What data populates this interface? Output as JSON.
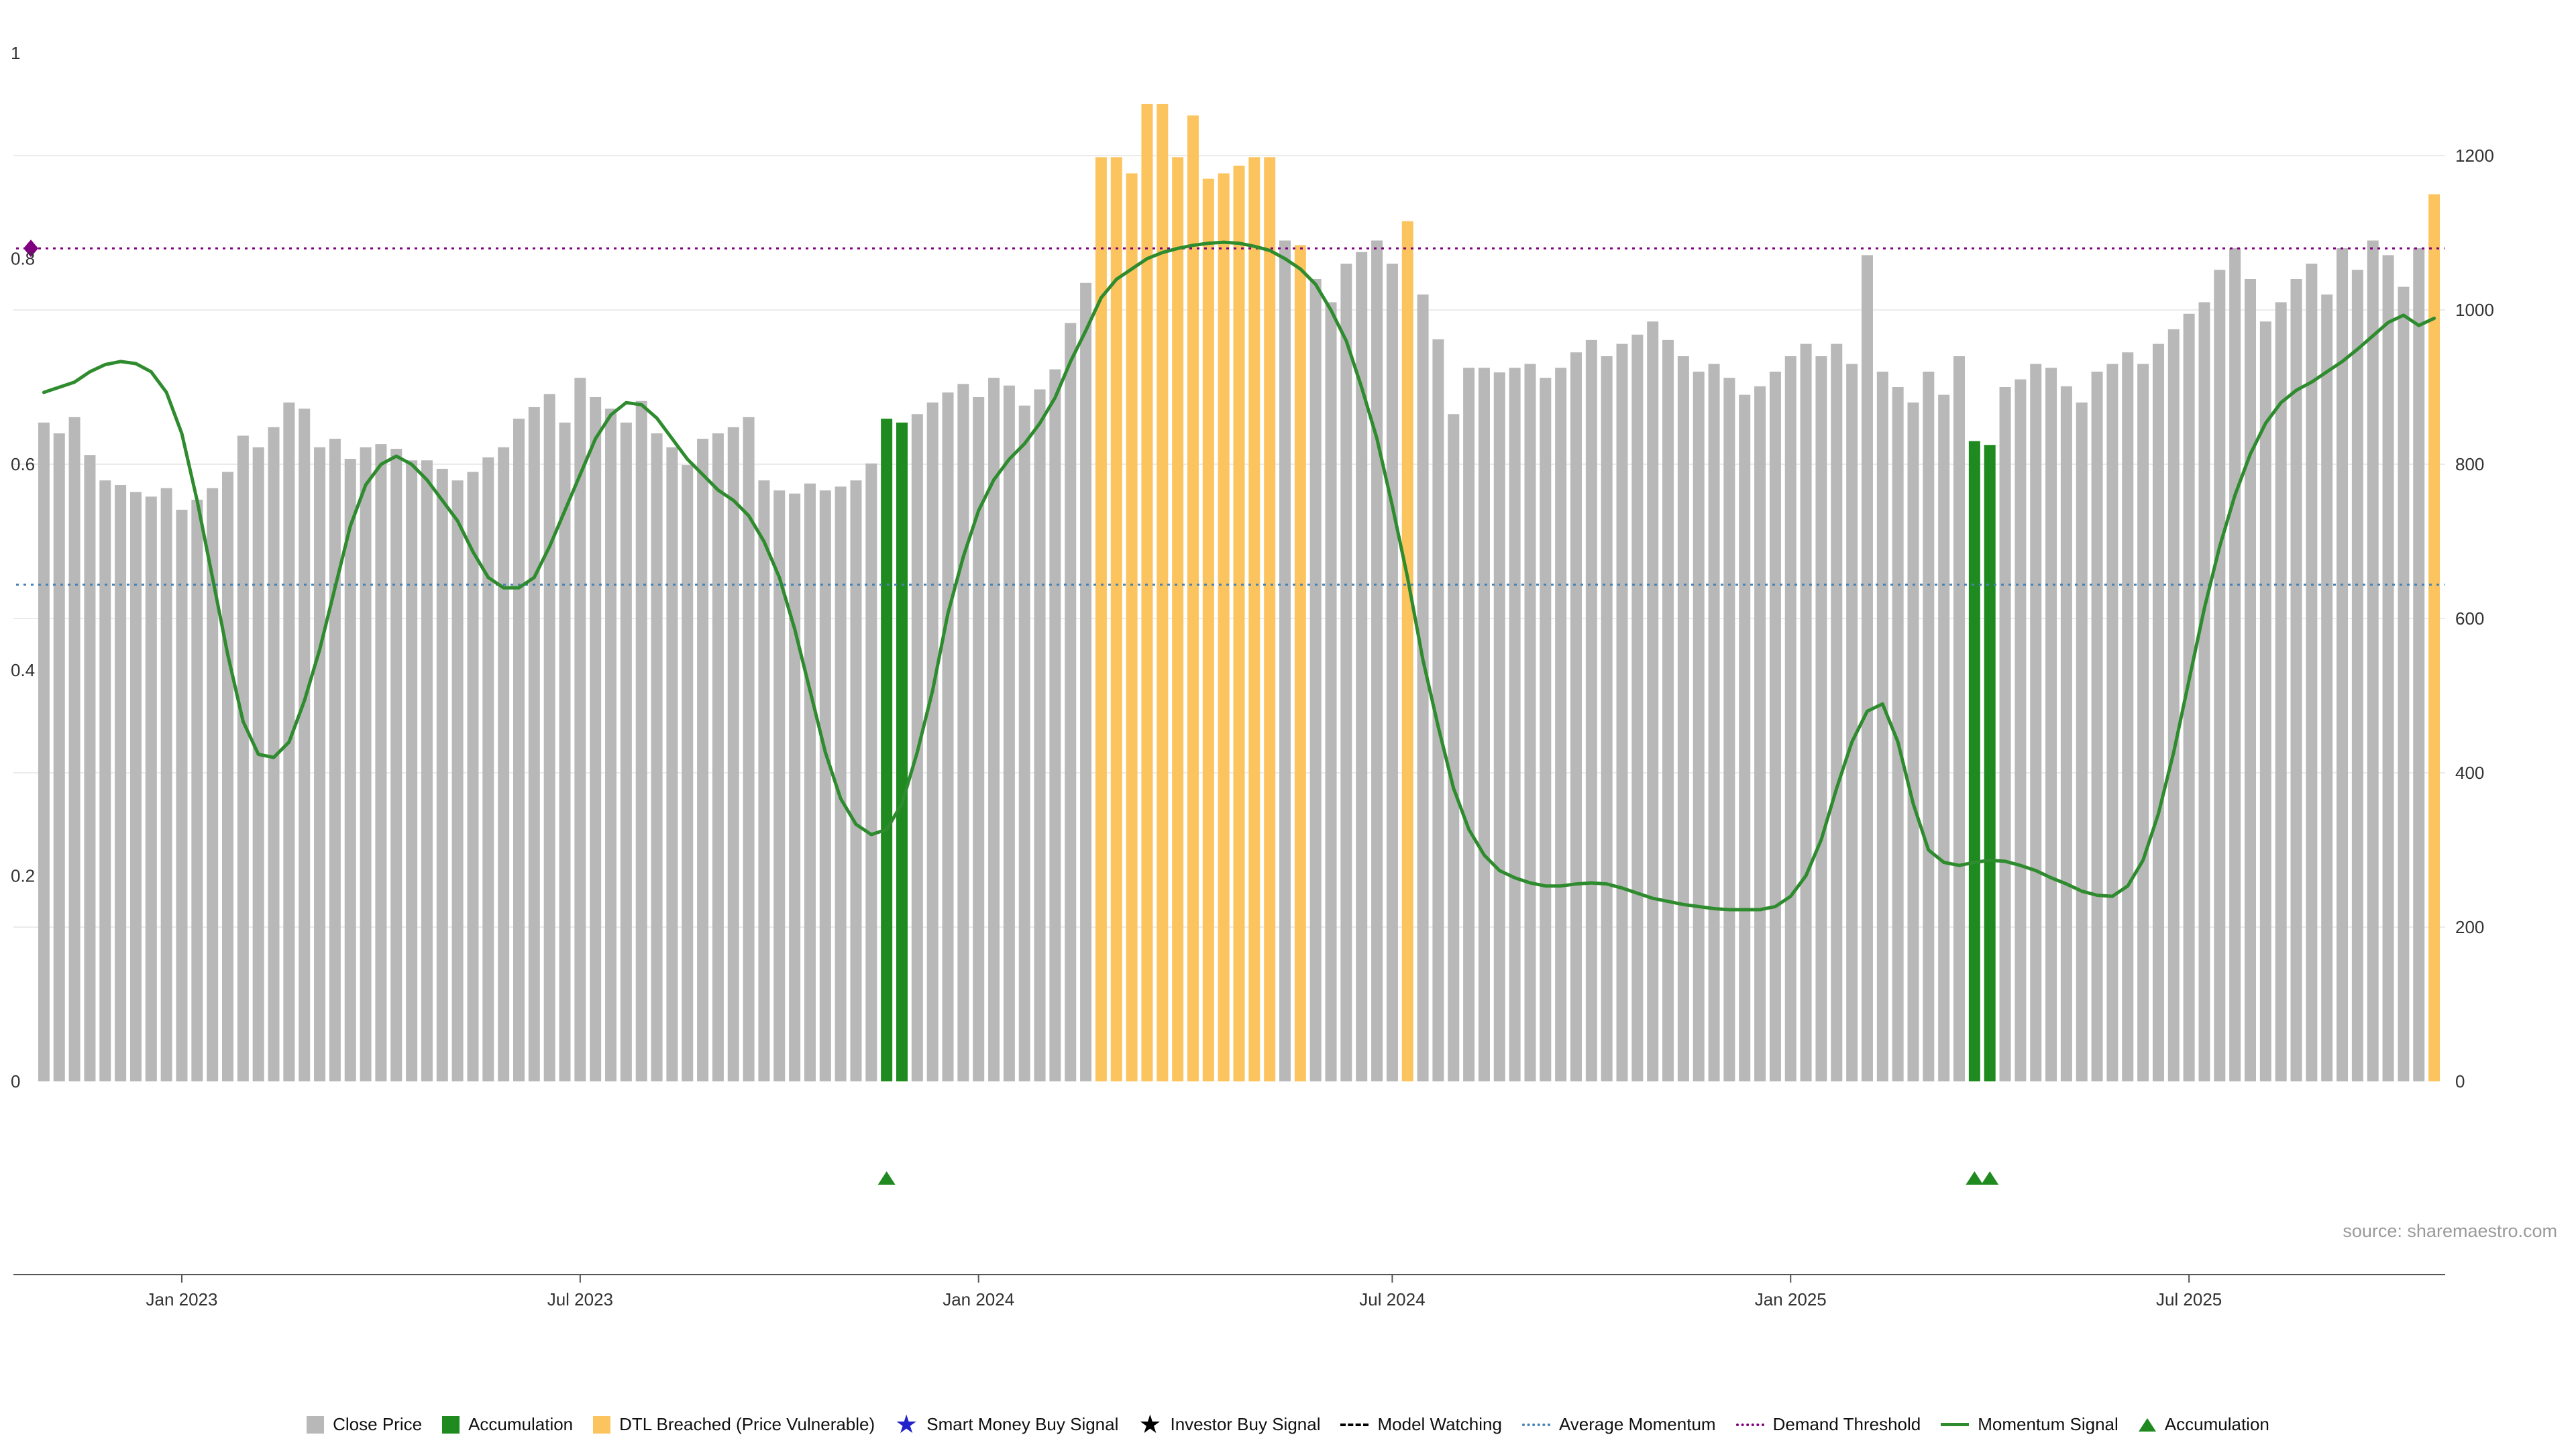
{
  "page": {
    "source_note": "source: sharemaestro.com"
  },
  "chart_data": {
    "type": "bar",
    "description": "Weekly close-price bars (right axis) with momentum signal line (left axis), demand threshold and average momentum reference lines, accumulation and DTL-breached highlighted bars, accumulation triangle markers.",
    "x_ticks": [
      {
        "label": "Jan 2023",
        "i": 9
      },
      {
        "label": "Jul 2023",
        "i": 35
      },
      {
        "label": "Jan 2024",
        "i": 61
      },
      {
        "label": "Jul 2024",
        "i": 88
      },
      {
        "label": "Jan 2025",
        "i": 114
      },
      {
        "label": "Jul 2025",
        "i": 140
      }
    ],
    "left_axis": {
      "min": 0,
      "max": 1,
      "ticks": [
        0,
        0.2,
        0.4,
        0.6,
        0.8,
        1
      ]
    },
    "right_axis": {
      "min": 0,
      "max": 1200,
      "ticks": [
        0,
        200,
        400,
        600,
        800,
        1000,
        1200
      ]
    },
    "series": [
      {
        "name": "Close Price",
        "type": "bar",
        "axis": "right",
        "values": [
          854,
          840,
          861,
          812,
          779,
          773,
          764,
          758,
          769,
          741,
          754,
          769,
          790,
          837,
          822,
          848,
          880,
          872,
          822,
          833,
          807,
          822,
          826,
          820,
          805,
          805,
          794,
          779,
          790,
          809,
          822,
          859,
          874,
          891,
          854,
          912,
          887,
          872,
          854,
          882,
          840,
          822,
          799,
          833,
          840,
          848,
          861,
          779,
          766,
          762,
          775,
          766,
          771,
          779,
          801,
          859,
          854,
          865,
          880,
          893,
          904,
          887,
          912,
          902,
          876,
          897,
          923,
          983,
          1035,
          1198,
          1198,
          1177,
          1267,
          1267,
          1198,
          1252,
          1170,
          1177,
          1187,
          1198,
          1198,
          1090,
          1084,
          1040,
          1010,
          1060,
          1075,
          1090,
          1060,
          1115,
          1020,
          962,
          865,
          925,
          925,
          919,
          925,
          930,
          912,
          925,
          945,
          961,
          940,
          956,
          968,
          985,
          961,
          940,
          920,
          930,
          912,
          890,
          901,
          920,
          940,
          956,
          940,
          956,
          930,
          1071,
          920,
          900,
          880,
          920,
          890,
          940,
          830,
          825,
          900,
          910,
          930,
          925,
          901,
          880,
          920,
          930,
          945,
          930,
          956,
          975,
          995,
          1010,
          1052,
          1080,
          1040,
          985,
          1010,
          1040,
          1060,
          1020,
          1080,
          1052,
          1090,
          1071,
          1030,
          1080,
          1150
        ]
      },
      {
        "name": "Momentum Signal",
        "type": "line",
        "axis": "left",
        "values": [
          0.67,
          0.675,
          0.68,
          0.69,
          0.697,
          0.7,
          0.698,
          0.69,
          0.67,
          0.63,
          0.565,
          0.49,
          0.415,
          0.35,
          0.318,
          0.315,
          0.33,
          0.37,
          0.42,
          0.48,
          0.54,
          0.58,
          0.6,
          0.608,
          0.6,
          0.585,
          0.565,
          0.545,
          0.515,
          0.49,
          0.48,
          0.48,
          0.49,
          0.52,
          0.555,
          0.59,
          0.625,
          0.648,
          0.66,
          0.658,
          0.645,
          0.625,
          0.605,
          0.59,
          0.575,
          0.565,
          0.55,
          0.525,
          0.49,
          0.44,
          0.38,
          0.32,
          0.275,
          0.25,
          0.24,
          0.245,
          0.27,
          0.32,
          0.38,
          0.455,
          0.51,
          0.555,
          0.585,
          0.605,
          0.62,
          0.64,
          0.665,
          0.7,
          0.73,
          0.762,
          0.78,
          0.79,
          0.8,
          0.806,
          0.81,
          0.813,
          0.815,
          0.816,
          0.815,
          0.812,
          0.808,
          0.8,
          0.79,
          0.775,
          0.75,
          0.72,
          0.675,
          0.625,
          0.56,
          0.49,
          0.41,
          0.345,
          0.285,
          0.245,
          0.22,
          0.205,
          0.198,
          0.193,
          0.19,
          0.19,
          0.192,
          0.193,
          0.192,
          0.188,
          0.183,
          0.178,
          0.175,
          0.172,
          0.17,
          0.168,
          0.167,
          0.167,
          0.167,
          0.17,
          0.18,
          0.2,
          0.235,
          0.285,
          0.33,
          0.36,
          0.367,
          0.33,
          0.27,
          0.225,
          0.213,
          0.21,
          0.213,
          0.215,
          0.214,
          0.21,
          0.205,
          0.198,
          0.192,
          0.185,
          0.181,
          0.18,
          0.19,
          0.215,
          0.26,
          0.32,
          0.39,
          0.46,
          0.52,
          0.57,
          0.61,
          0.64,
          0.66,
          0.672,
          0.68,
          0.69,
          0.7,
          0.712,
          0.725,
          0.738,
          0.745,
          0.735,
          0.742
        ]
      }
    ],
    "accumulation_indices": [
      55,
      56,
      126,
      127
    ],
    "dtl_indices": [
      69,
      70,
      71,
      72,
      73,
      74,
      75,
      76,
      77,
      78,
      79,
      80,
      82,
      89,
      156
    ],
    "accumulation_marker_indices": [
      55,
      126,
      127
    ],
    "reference_lines": [
      {
        "name": "Demand Threshold",
        "axis": "left",
        "value": 0.81,
        "style": "dotted",
        "color": "#800080"
      },
      {
        "name": "Average Momentum",
        "axis": "left",
        "value": 0.483,
        "style": "dotted",
        "color": "#4682b4"
      }
    ],
    "threshold_marker": {
      "shape": "diamond",
      "axis": "left",
      "value": 0.81,
      "color": "#800080"
    },
    "colors": {
      "close_bar": "#b8b8b8",
      "accumulation_bar": "#1f8a1f",
      "dtl_bar": "#fcc45f",
      "momentum_line": "#2e8b2e",
      "average_momentum": "#4682b4",
      "demand_threshold": "#800080",
      "grid": "#ebebeb",
      "axis": "#555555",
      "tick_text": "#333333",
      "triangle": "#1f8a1f"
    },
    "legend": [
      {
        "label": "Close Price",
        "swatch": "square",
        "color": "#b8b8b8"
      },
      {
        "label": "Accumulation",
        "swatch": "square",
        "color": "#1f8a1f"
      },
      {
        "label": "DTL Breached (Price Vulnerable)",
        "swatch": "square",
        "color": "#fcc45f"
      },
      {
        "label": "Smart Money Buy Signal",
        "swatch": "star",
        "color": "#2222cc"
      },
      {
        "label": "Investor Buy Signal",
        "swatch": "star",
        "color": "#000000"
      },
      {
        "label": "Model Watching",
        "swatch": "dash",
        "color": "#000000"
      },
      {
        "label": "Average Momentum",
        "swatch": "dotted",
        "color": "#4682b4"
      },
      {
        "label": "Demand Threshold",
        "swatch": "dotted",
        "color": "#800080"
      },
      {
        "label": "Momentum Signal",
        "swatch": "line",
        "color": "#2e8b2e"
      },
      {
        "label": "Accumulation",
        "swatch": "triangle",
        "color": "#1f8a1f"
      }
    ]
  }
}
